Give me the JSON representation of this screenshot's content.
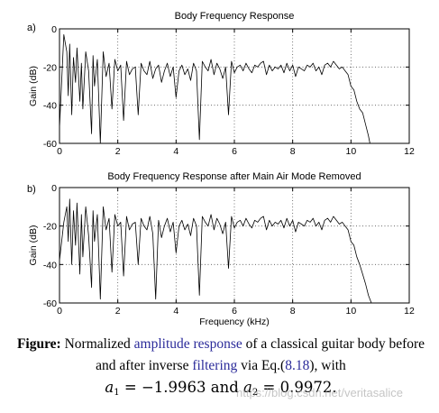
{
  "chart_data": [
    {
      "type": "line",
      "panel_label": "a)",
      "title": "Body Frequency Response",
      "xlabel": "",
      "ylabel": "Gain (dB)",
      "xlim": [
        0,
        12
      ],
      "ylim": [
        -60,
        0
      ],
      "xticks": [
        "0",
        "2",
        "4",
        "6",
        "8",
        "10",
        "12"
      ],
      "yticks": [
        "0",
        "-20",
        "-40",
        "-60"
      ],
      "grid": true,
      "series": [
        {
          "color": "#000000",
          "x": [
            0,
            0.15,
            0.25,
            0.3,
            0.35,
            0.42,
            0.48,
            0.55,
            0.6,
            0.7,
            0.75,
            0.8,
            0.9,
            1.0,
            1.1,
            1.15,
            1.2,
            1.3,
            1.4,
            1.5,
            1.6,
            1.7,
            1.8,
            1.9,
            2.0,
            2.1,
            2.2,
            2.3,
            2.4,
            2.5,
            2.6,
            2.7,
            2.8,
            2.9,
            3.0,
            3.1,
            3.2,
            3.3,
            3.4,
            3.5,
            3.6,
            3.7,
            3.8,
            3.9,
            4.0,
            4.1,
            4.2,
            4.3,
            4.4,
            4.5,
            4.6,
            4.7,
            4.8,
            4.9,
            5.0,
            5.1,
            5.2,
            5.3,
            5.4,
            5.5,
            5.6,
            5.7,
            5.8,
            5.9,
            6.0,
            6.1,
            6.2,
            6.3,
            6.4,
            6.5,
            6.6,
            6.7,
            6.8,
            6.9,
            7.0,
            7.1,
            7.2,
            7.3,
            7.4,
            7.5,
            7.6,
            7.7,
            7.8,
            7.9,
            8.0,
            8.1,
            8.2,
            8.3,
            8.4,
            8.5,
            8.6,
            8.7,
            8.8,
            8.9,
            9.0,
            9.1,
            9.2,
            9.3,
            9.4,
            9.5,
            9.6,
            9.7,
            9.8,
            9.9,
            10.0,
            10.1,
            10.2,
            10.3,
            10.4,
            10.5,
            10.6,
            10.65
          ],
          "y": [
            -52,
            -3,
            -12,
            -35,
            -8,
            -45,
            -15,
            -28,
            -10,
            -38,
            -18,
            -42,
            -12,
            -22,
            -55,
            -14,
            -30,
            -16,
            -60,
            -12,
            -25,
            -18,
            -42,
            -16,
            -22,
            -19,
            -48,
            -17,
            -24,
            -21,
            -20,
            -45,
            -18,
            -22,
            -24,
            -17,
            -26,
            -21,
            -19,
            -28,
            -22,
            -18,
            -25,
            -20,
            -36,
            -22,
            -19,
            -24,
            -21,
            -27,
            -18,
            -22,
            -58,
            -17,
            -20,
            -22,
            -16,
            -24,
            -18,
            -21,
            -26,
            -20,
            -45,
            -17,
            -23,
            -20,
            -19,
            -22,
            -18,
            -21,
            -23,
            -19,
            -20,
            -18,
            -17,
            -24,
            -19,
            -22,
            -20,
            -21,
            -19,
            -23,
            -18,
            -22,
            -19,
            -25,
            -20,
            -21,
            -22,
            -19,
            -20,
            -18,
            -22,
            -20,
            -24,
            -19,
            -18,
            -20,
            -17,
            -19,
            -21,
            -20,
            -22,
            -24,
            -30,
            -32,
            -38,
            -42,
            -44,
            -50,
            -56,
            -60
          ]
        }
      ]
    },
    {
      "type": "line",
      "panel_label": "b)",
      "title": "Body Frequency Response after Main Air Mode Removed",
      "xlabel": "Frequency (kHz)",
      "ylabel": "Gain (dB)",
      "xlim": [
        0,
        12
      ],
      "ylim": [
        -60,
        0
      ],
      "xticks": [
        "0",
        "2",
        "4",
        "6",
        "8",
        "10",
        "12"
      ],
      "yticks": [
        "0",
        "-20",
        "-40",
        "-60"
      ],
      "grid": true,
      "series": [
        {
          "color": "#000000",
          "x": [
            0,
            0.15,
            0.25,
            0.3,
            0.35,
            0.42,
            0.48,
            0.55,
            0.6,
            0.7,
            0.75,
            0.8,
            0.9,
            1.0,
            1.1,
            1.15,
            1.2,
            1.3,
            1.4,
            1.5,
            1.6,
            1.7,
            1.8,
            1.9,
            2.0,
            2.1,
            2.2,
            2.3,
            2.4,
            2.5,
            2.6,
            2.7,
            2.8,
            2.9,
            3.0,
            3.1,
            3.2,
            3.3,
            3.4,
            3.5,
            3.6,
            3.7,
            3.8,
            3.9,
            4.0,
            4.1,
            4.2,
            4.3,
            4.4,
            4.5,
            4.6,
            4.7,
            4.8,
            4.9,
            5.0,
            5.1,
            5.2,
            5.3,
            5.4,
            5.5,
            5.6,
            5.7,
            5.8,
            5.9,
            6.0,
            6.1,
            6.2,
            6.3,
            6.4,
            6.5,
            6.6,
            6.7,
            6.8,
            6.9,
            7.0,
            7.1,
            7.2,
            7.3,
            7.4,
            7.5,
            7.6,
            7.7,
            7.8,
            7.9,
            8.0,
            8.1,
            8.2,
            8.3,
            8.4,
            8.5,
            8.6,
            8.7,
            8.8,
            8.9,
            9.0,
            9.1,
            9.2,
            9.3,
            9.4,
            9.5,
            9.6,
            9.7,
            9.8,
            9.9,
            10.0,
            10.1,
            10.2,
            10.3,
            10.4,
            10.5,
            10.6,
            10.7
          ],
          "y": [
            -38,
            -18,
            -10,
            -28,
            -6,
            -40,
            -12,
            -30,
            -8,
            -45,
            -14,
            -36,
            -10,
            -25,
            -52,
            -12,
            -28,
            -14,
            -58,
            -10,
            -22,
            -16,
            -44,
            -14,
            -20,
            -18,
            -46,
            -15,
            -22,
            -19,
            -18,
            -40,
            -16,
            -20,
            -22,
            -15,
            -24,
            -58,
            -17,
            -26,
            -20,
            -16,
            -23,
            -18,
            -34,
            -20,
            -17,
            -22,
            -19,
            -25,
            -16,
            -20,
            -56,
            -15,
            -18,
            -20,
            -14,
            -22,
            -16,
            -19,
            -24,
            -18,
            -42,
            -15,
            -21,
            -18,
            -17,
            -20,
            -16,
            -19,
            -21,
            -17,
            -18,
            -16,
            -15,
            -22,
            -17,
            -20,
            -18,
            -19,
            -17,
            -21,
            -16,
            -20,
            -17,
            -23,
            -18,
            -19,
            -20,
            -17,
            -18,
            -16,
            -20,
            -18,
            -22,
            -17,
            -16,
            -18,
            -15,
            -17,
            -19,
            -18,
            -20,
            -22,
            -28,
            -30,
            -36,
            -40,
            -45,
            -50,
            -56,
            -60
          ]
        }
      ]
    }
  ],
  "caption": {
    "label": "Figure:",
    "t1": " Normalized ",
    "link1": "amplitude response",
    "t2": " of a classical guitar body before and after inverse ",
    "link2": "filtering",
    "t3": " via Eq.(",
    "eqref": "8.18",
    "t4": "), with",
    "a1_name": "a",
    "a1_sub": "1",
    "a1_val": " = −1.9963",
    "and_word": " and ",
    "a2_name": "a",
    "a2_sub": "2",
    "a2_val": " = 0.9972",
    "end": "."
  },
  "watermark": "https://blog.csdn.net/veritasalice"
}
